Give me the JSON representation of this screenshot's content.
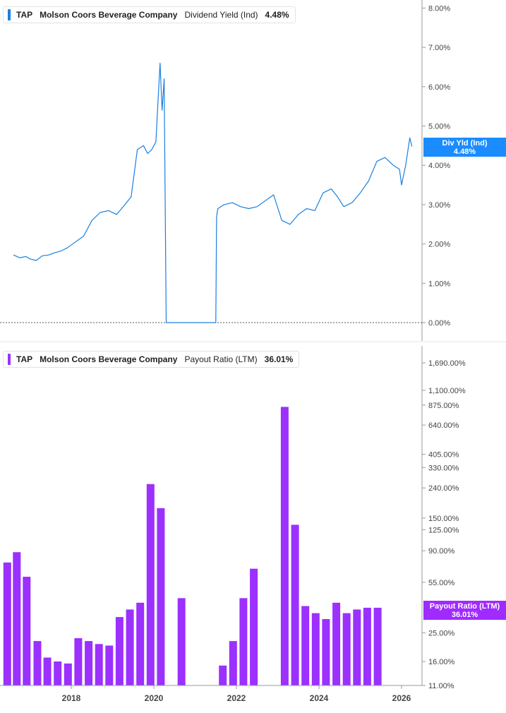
{
  "colors": {
    "yield_line": "#1a7fe0",
    "bar": "#9b30ff",
    "badge_top": "#1a8cff",
    "badge_bottom": "#a02bff",
    "axis": "#9a9a9a",
    "text": "#444444"
  },
  "legend_top": {
    "ticker": "TAP",
    "company": "Molson Coors Beverage Company",
    "metric": "Dividend Yield (Ind)",
    "value": "4.48%"
  },
  "legend_bottom": {
    "ticker": "TAP",
    "company": "Molson Coors Beverage Company",
    "metric": "Payout Ratio (LTM)",
    "value": "36.01%"
  },
  "badge_top": {
    "label": "Div Yld (Ind)",
    "value": "4.48%"
  },
  "badge_bottom": {
    "label": "Payout Ratio (LTM)",
    "value": "36.01%"
  },
  "chart_data": [
    {
      "type": "line",
      "series": [
        {
          "x": [
            2016.6,
            2016.75,
            2016.9,
            2017.0,
            2017.15,
            2017.3,
            2017.45,
            2017.6,
            2017.75,
            2017.9,
            2018.1,
            2018.3,
            2018.5,
            2018.7,
            2018.9,
            2019.1,
            2019.3,
            2019.45,
            2019.6,
            2019.75,
            2019.85,
            2019.95,
            2020.05,
            2020.1,
            2020.15,
            2020.2,
            2020.25,
            2020.3,
            2020.35,
            2020.38,
            2020.4,
            2020.45,
            2021.5,
            2021.52,
            2021.55,
            2021.7,
            2021.9,
            2022.1,
            2022.3,
            2022.5,
            2022.7,
            2022.9,
            2023.1,
            2023.3,
            2023.5,
            2023.7,
            2023.9,
            2024.1,
            2024.3,
            2024.45,
            2024.6,
            2024.8,
            2025.0,
            2025.2,
            2025.4,
            2025.6,
            2025.8,
            2025.95,
            2026.0,
            2026.1,
            2026.2,
            2026.25
          ],
          "values": [
            1.72,
            1.65,
            1.68,
            1.62,
            1.58,
            1.7,
            1.72,
            1.78,
            1.82,
            1.9,
            2.05,
            2.2,
            2.6,
            2.8,
            2.85,
            2.75,
            3.0,
            3.2,
            4.4,
            4.5,
            4.3,
            4.4,
            4.6,
            5.6,
            6.6,
            5.4,
            6.2,
            0.0,
            0.0,
            0.0,
            0.0,
            0.0,
            0.0,
            2.7,
            2.9,
            3.0,
            3.05,
            2.95,
            2.9,
            2.95,
            3.1,
            3.25,
            2.6,
            2.5,
            2.75,
            2.9,
            2.85,
            3.3,
            3.4,
            3.2,
            2.95,
            3.05,
            3.3,
            3.6,
            4.1,
            4.2,
            4.0,
            3.9,
            3.5,
            4.0,
            4.7,
            4.48
          ]
        }
      ],
      "yticks": [
        "0.00%",
        "1.00%",
        "2.00%",
        "3.00%",
        "4.00%",
        "5.00%",
        "6.00%",
        "7.00%",
        "8.00%"
      ],
      "ylim": [
        0,
        8
      ],
      "grid": false
    },
    {
      "type": "bar",
      "series": [
        {
          "x": [
            2016.45,
            2016.68,
            2016.92,
            2017.18,
            2017.42,
            2017.67,
            2017.92,
            2018.17,
            2018.42,
            2018.67,
            2018.92,
            2019.17,
            2019.42,
            2019.67,
            2019.92,
            2020.17,
            2020.67,
            2021.67,
            2021.92,
            2022.17,
            2022.42,
            2023.17,
            2023.42,
            2023.67,
            2023.92,
            2024.17,
            2024.42,
            2024.67,
            2024.92,
            2025.17,
            2025.42
          ],
          "values": [
            75,
            88,
            60,
            22,
            17,
            16,
            15.5,
            23,
            22,
            21,
            20.5,
            32,
            36,
            40,
            255,
            175,
            43,
            15,
            22,
            43,
            68,
            850,
            135,
            38,
            34,
            31,
            40,
            34,
            36,
            37,
            37
          ]
        }
      ],
      "yticks": [
        "11.00%",
        "16.00%",
        "25.00%",
        "55.00%",
        "90.00%",
        "125.00%",
        "150.00%",
        "240.00%",
        "330.00%",
        "405.00%",
        "640.00%",
        "875.00%",
        "1,100.00%",
        "1,690.00%"
      ],
      "scale": "log",
      "xticks": [
        "2018",
        "2020",
        "2022",
        "2024",
        "2026"
      ],
      "grid": false
    }
  ]
}
